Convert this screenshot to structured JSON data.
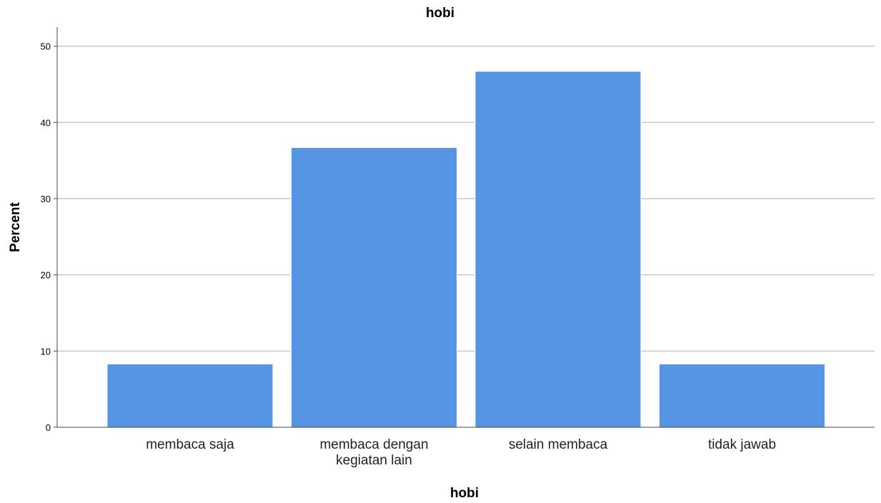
{
  "chart_data": {
    "type": "bar",
    "title": "hobi",
    "xlabel": "hobi",
    "ylabel": "Percent",
    "categories": [
      "membaca saja",
      "membaca dengan kegiatan lain",
      "selain membaca",
      "tidak jawab"
    ],
    "category_lines": [
      [
        "membaca saja"
      ],
      [
        "membaca dengan",
        "kegiatan lain"
      ],
      [
        "selain membaca"
      ],
      [
        "tidak jawab"
      ]
    ],
    "values": [
      8.3,
      36.7,
      46.7,
      8.3
    ],
    "ylim": [
      0,
      52.5
    ],
    "yticks": [
      "0",
      "10",
      "20",
      "30",
      "40",
      "50"
    ],
    "grid": true,
    "bar_color": "#5595e3",
    "legend": "none"
  }
}
